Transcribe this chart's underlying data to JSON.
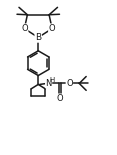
{
  "bg_color": "#ffffff",
  "line_color": "#1a1a1a",
  "line_width": 1.1,
  "font_size": 6.0,
  "figsize": [
    1.17,
    1.55
  ],
  "dpi": 100,
  "xlim": [
    0,
    11.7
  ],
  "ylim": [
    0,
    15.5
  ]
}
